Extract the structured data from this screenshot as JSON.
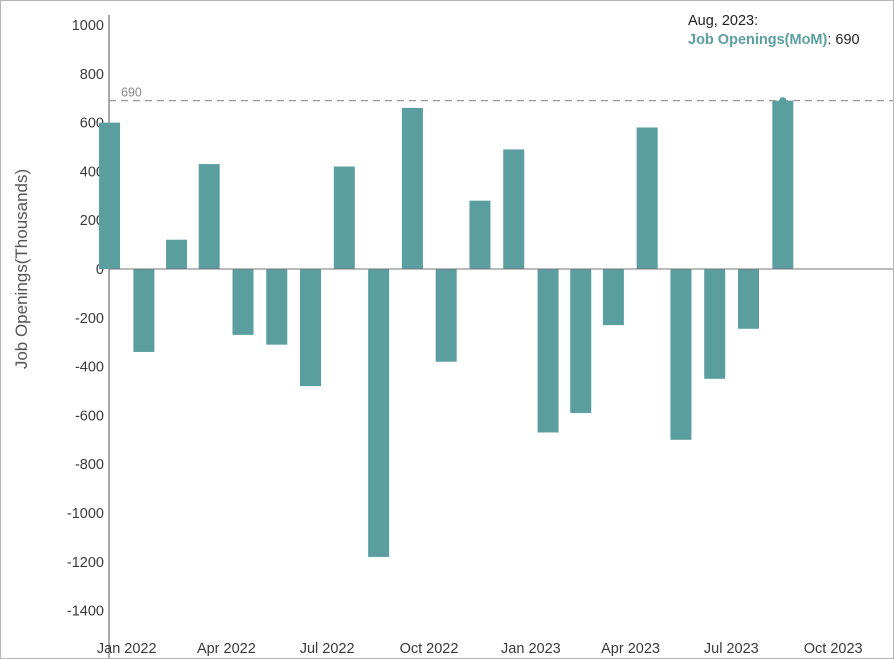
{
  "chart_data": {
    "type": "bar",
    "ylabel": "Job Openings(Thousands)",
    "xlabel": "",
    "title": "",
    "ylim": [
      -1500,
      1000
    ],
    "y_ticks": [
      1000,
      800,
      600,
      400,
      200,
      0,
      -200,
      -400,
      -600,
      -800,
      -1000,
      -1200,
      -1400
    ],
    "y_tick_labels": [
      "1000",
      "800",
      "600",
      "400",
      "200",
      "0",
      "-200",
      "-400",
      "-600",
      "-800",
      "-1000",
      "-1200",
      "-1400"
    ],
    "x_tick_labels": [
      "Jan 2022",
      "Apr 2022",
      "Jul 2022",
      "Oct 2022",
      "Jan 2023",
      "Apr 2023",
      "Jul 2023",
      "Oct 2023"
    ],
    "x_tick_positions": [
      "2022-01",
      "2022-04",
      "2022-07",
      "2022-10",
      "2023-01",
      "2023-04",
      "2023-07",
      "2023-10"
    ],
    "x_range": [
      "2021-12-16",
      "2023-11-24"
    ],
    "categories": [
      "2021-12",
      "2022-01",
      "2022-02",
      "2022-03",
      "2022-04",
      "2022-05",
      "2022-06",
      "2022-07",
      "2022-08",
      "2022-09",
      "2022-10",
      "2022-11",
      "2022-12",
      "2023-01",
      "2023-02",
      "2023-03",
      "2023-04",
      "2023-05",
      "2023-06",
      "2023-07",
      "2023-08"
    ],
    "series": [
      {
        "name": "Job Openings(MoM)",
        "color": "#5b9ea0",
        "values": [
          600,
          -340,
          120,
          430,
          -270,
          -310,
          -480,
          420,
          -1180,
          660,
          -380,
          280,
          490,
          -670,
          -590,
          -230,
          580,
          -700,
          -450,
          -245,
          690
        ]
      }
    ],
    "reference_line": {
      "value": 690,
      "label": "690"
    },
    "grid": false,
    "legend": "none"
  },
  "tooltip": {
    "date": "Aug, 2023:",
    "series": "Job Openings(MoM)",
    "separator": ": ",
    "value": "690"
  }
}
